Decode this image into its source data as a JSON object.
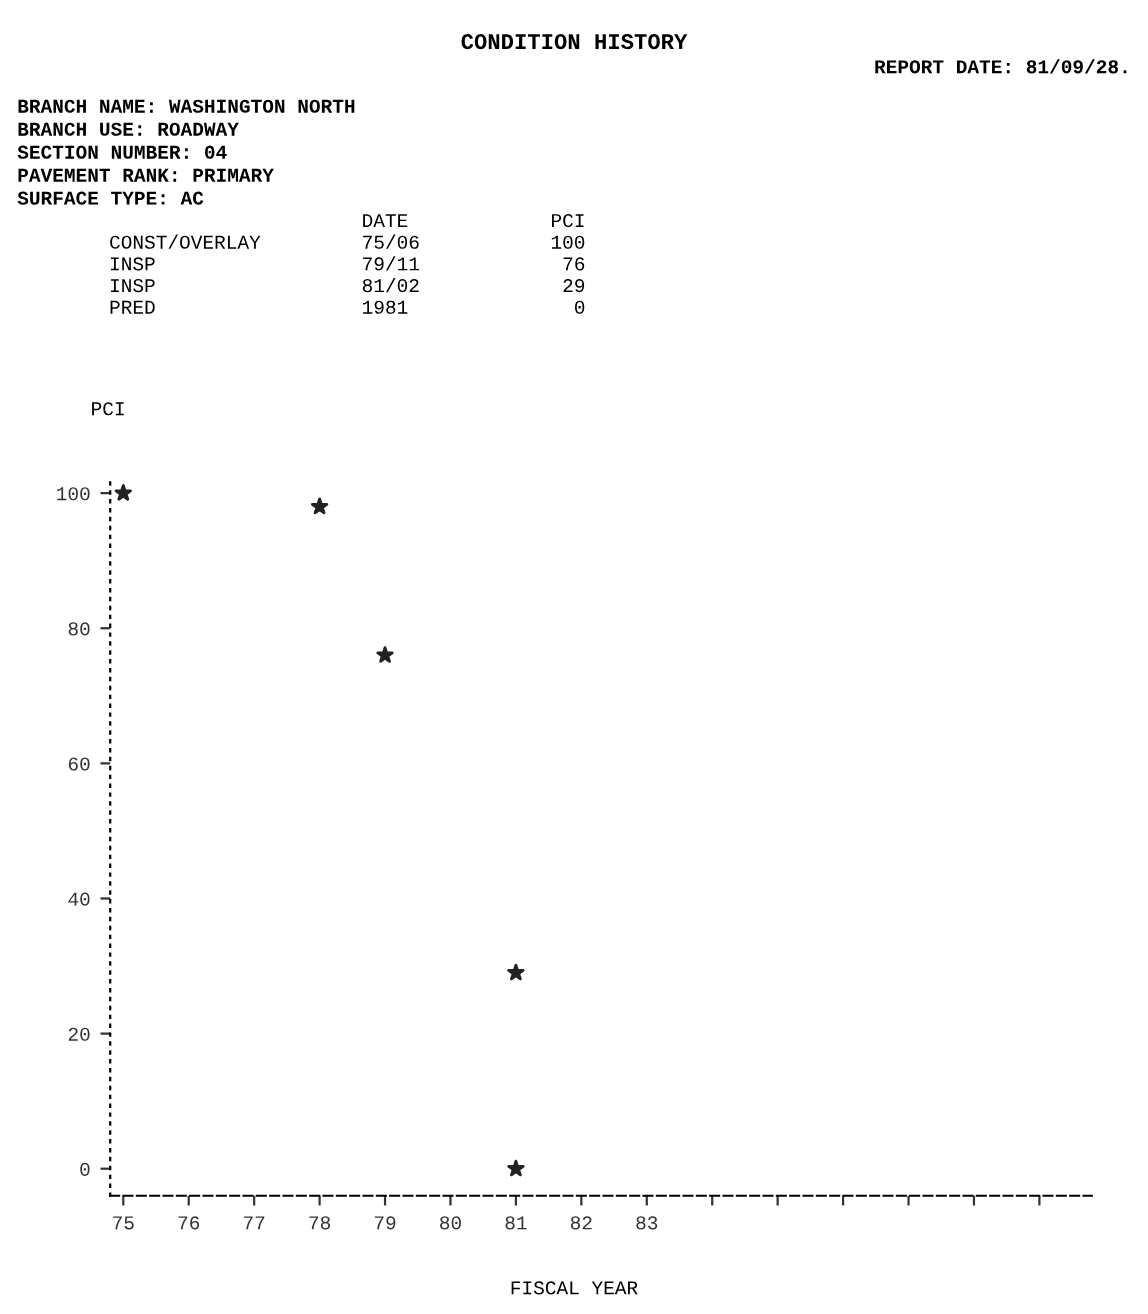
{
  "chart_data": {
    "type": "scatter",
    "title": "CONDITION HISTORY",
    "xlabel": "FISCAL YEAR",
    "ylabel": "PCI",
    "annotations": [
      "REPORT DATE: 81/09/28.",
      "BRANCH NAME: WASHINGTON NORTH",
      "BRANCH USE: ROADWAY",
      "SECTION NUMBER: 04",
      "PAVEMENT RANK: PRIMARY",
      "SURFACE TYPE: AC",
      "DATE",
      "PCI",
      "CONST/OVERLAY",
      "75/06",
      "100",
      "INSP",
      "79/11",
      "76",
      "INSP",
      "81/02",
      "29",
      "PRED",
      "1981",
      "0"
    ],
    "x": [
      75,
      78,
      79,
      81,
      81
    ],
    "series": [
      {
        "color": "#222222",
        "values": [
          100,
          98,
          76,
          29,
          0
        ]
      }
    ],
    "xlim": [
      74.8,
      89.8
    ],
    "ylim": [
      -4,
      102
    ],
    "xticks": [
      75,
      76,
      77,
      78,
      79,
      80,
      81,
      82,
      83,
      {
        "value": 84,
        "label": null
      },
      {
        "value": 85,
        "label": null
      },
      {
        "value": 86,
        "label": null
      },
      {
        "value": 87,
        "label": null
      },
      {
        "value": 88,
        "label": null
      },
      {
        "value": 89,
        "label": null
      }
    ],
    "yticks": [
      0,
      20,
      40,
      60,
      80,
      100
    ],
    "grid": false,
    "marker": "star"
  }
}
